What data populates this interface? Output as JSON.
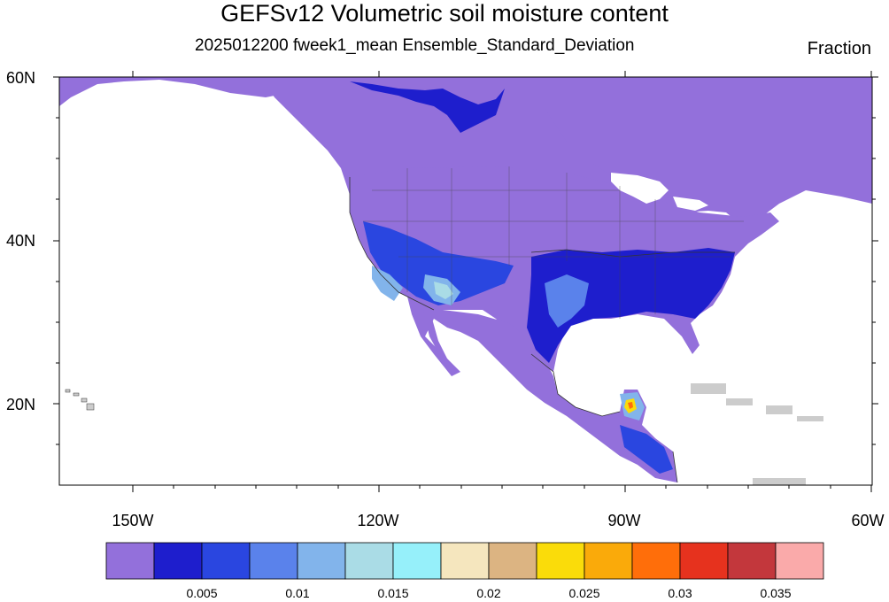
{
  "title": "GEFSv12 Volumetric soil moisture content",
  "subtitle": "2025012200 fweek1_mean Ensemble_Standard_Deviation",
  "units": "Fraction",
  "map": {
    "lat_labels": [
      "60N",
      "40N",
      "20N"
    ],
    "lon_labels": [
      "150W",
      "120W",
      "90W",
      "60W"
    ],
    "lat_range": [
      10,
      60
    ],
    "lon_range": [
      -159,
      -60
    ],
    "land_fill_color": "#9370DB"
  },
  "colorbar": {
    "colors": [
      "#9370DB",
      "#1E1ECD",
      "#2A46E0",
      "#5A82EB",
      "#82B4EB",
      "#AADCE6",
      "#96F0FA",
      "#F5E6BE",
      "#DCB482",
      "#FADC0A",
      "#FAAA0A",
      "#FF6E0A",
      "#E6321E",
      "#C3373C",
      "#FAAAAA"
    ],
    "labels": [
      "0.005",
      "0.01",
      "0.015",
      "0.02",
      "0.025",
      "0.03",
      "0.035"
    ]
  }
}
